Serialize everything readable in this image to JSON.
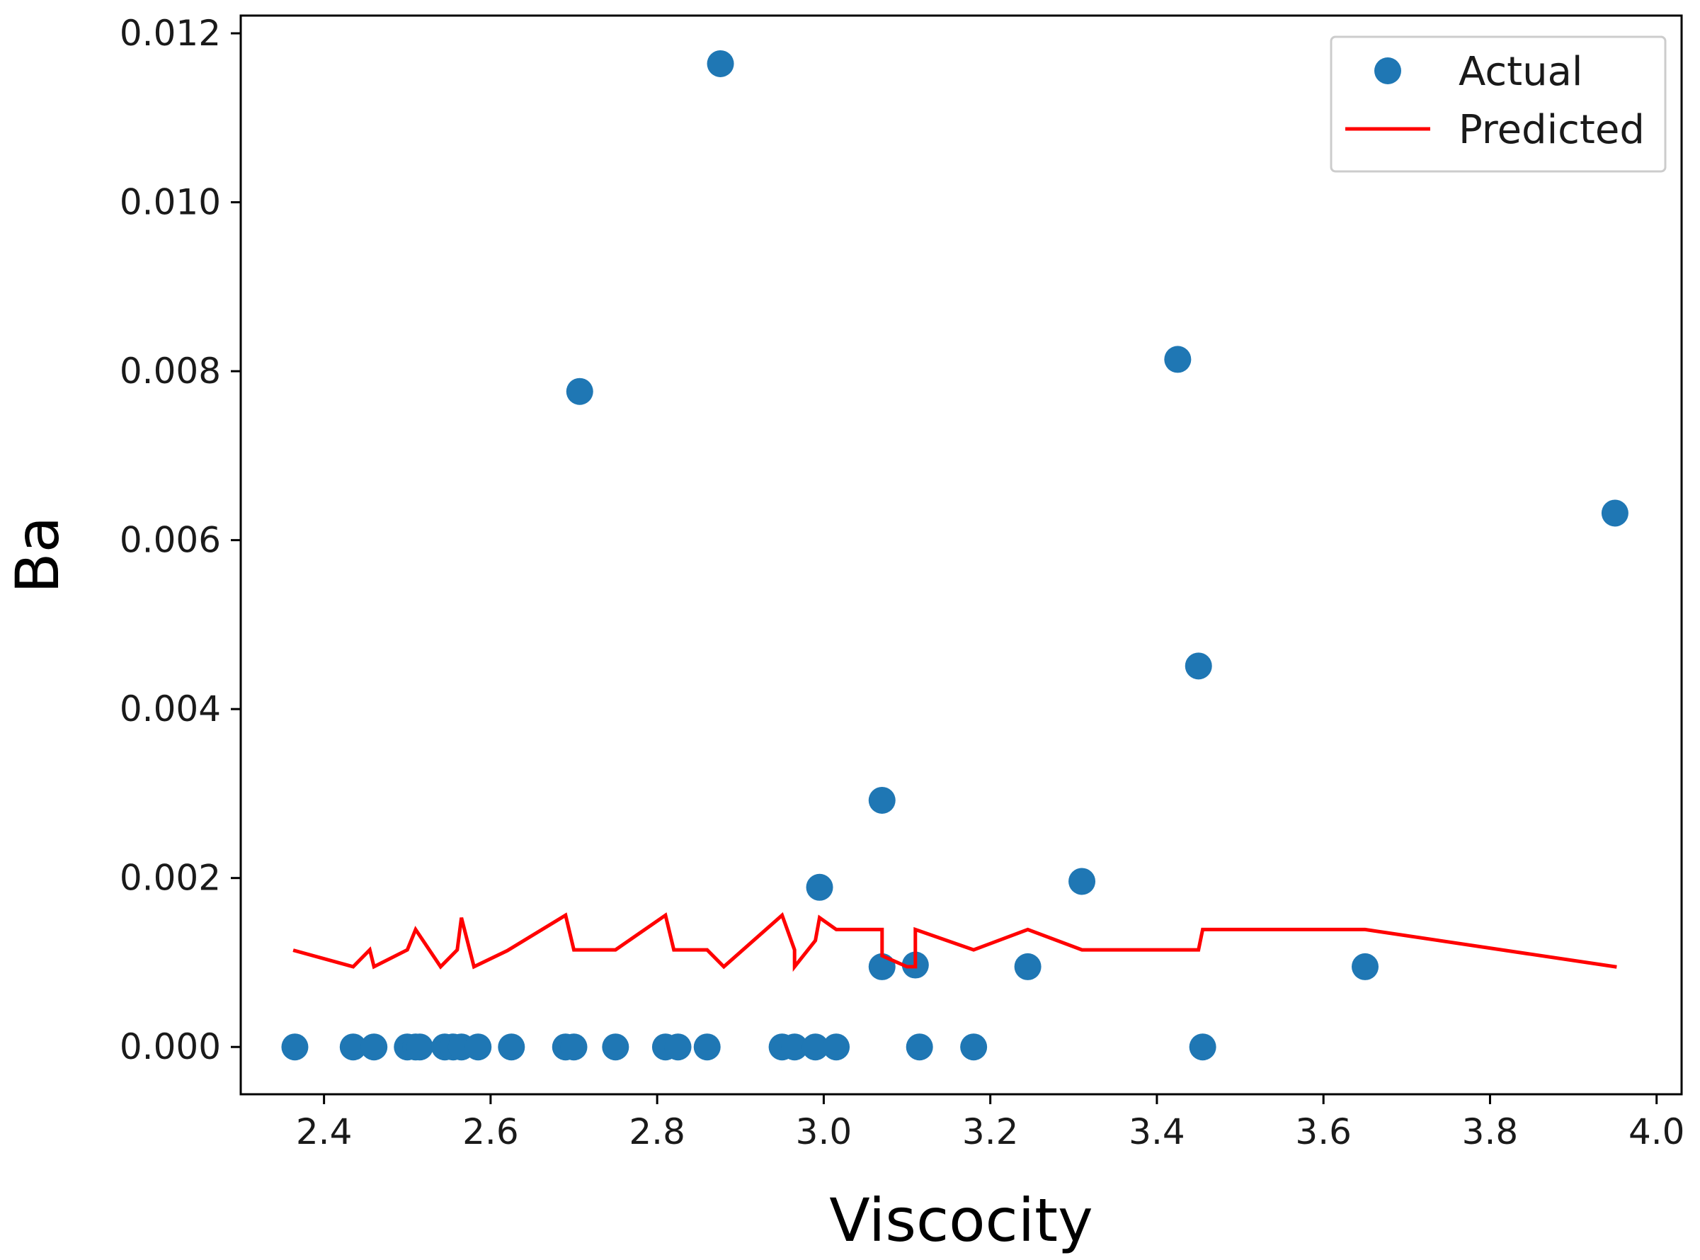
{
  "chart_data": {
    "type": "scatter",
    "title": "",
    "xlabel": "Viscocity",
    "ylabel": "Ba",
    "xlim": [
      2.3,
      4.03
    ],
    "ylim": [
      -0.00056,
      0.01221
    ],
    "xticks": [
      2.4,
      2.6,
      2.8,
      3.0,
      3.2,
      3.4,
      3.6,
      3.8,
      4.0
    ],
    "xtick_labels": [
      "2.4",
      "2.6",
      "2.8",
      "3.0",
      "3.2",
      "3.4",
      "3.6",
      "3.8",
      "4.0"
    ],
    "yticks": [
      0.0,
      0.002,
      0.004,
      0.006,
      0.008,
      0.01,
      0.012
    ],
    "ytick_labels": [
      "0.000",
      "0.002",
      "0.004",
      "0.006",
      "0.008",
      "0.010",
      "0.012"
    ],
    "grid": false,
    "legend_position": "top-right",
    "series": [
      {
        "name": "Actual",
        "kind": "scatter",
        "color": "#1f77b4",
        "points": [
          [
            2.365,
            0.0
          ],
          [
            2.435,
            0.0
          ],
          [
            2.46,
            0.0
          ],
          [
            2.5,
            0.0
          ],
          [
            2.51,
            0.0
          ],
          [
            2.515,
            0.0
          ],
          [
            2.545,
            0.0
          ],
          [
            2.555,
            0.0
          ],
          [
            2.565,
            0.0
          ],
          [
            2.585,
            0.0
          ],
          [
            2.625,
            0.0
          ],
          [
            2.69,
            0.0
          ],
          [
            2.7,
            0.0
          ],
          [
            2.75,
            0.0
          ],
          [
            2.81,
            0.0
          ],
          [
            2.825,
            0.0
          ],
          [
            2.86,
            0.0
          ],
          [
            2.95,
            0.0
          ],
          [
            2.965,
            0.0
          ],
          [
            2.99,
            0.0
          ],
          [
            3.015,
            0.0
          ],
          [
            3.115,
            0.0
          ],
          [
            3.18,
            0.0
          ],
          [
            3.455,
            0.0
          ],
          [
            2.707,
            0.00776
          ],
          [
            2.876,
            0.01164
          ],
          [
            2.995,
            0.00189
          ],
          [
            3.07,
            0.00292
          ],
          [
            3.07,
            0.00095
          ],
          [
            3.11,
            0.00097
          ],
          [
            3.245,
            0.00095
          ],
          [
            3.31,
            0.00196
          ],
          [
            3.425,
            0.00814
          ],
          [
            3.45,
            0.00451
          ],
          [
            3.65,
            0.00095
          ],
          [
            3.95,
            0.00632
          ]
        ]
      },
      {
        "name": "Predicted",
        "kind": "line",
        "color": "#ff0000",
        "x": [
          2.365,
          2.435,
          2.455,
          2.46,
          2.5,
          2.51,
          2.54,
          2.56,
          2.565,
          2.58,
          2.62,
          2.69,
          2.7,
          2.75,
          2.81,
          2.82,
          2.86,
          2.88,
          2.95,
          2.965,
          2.965,
          2.99,
          2.995,
          3.015,
          3.07,
          3.07,
          3.1,
          3.11,
          3.11,
          3.18,
          3.245,
          3.31,
          3.45,
          3.455,
          3.65,
          3.95
        ],
        "y": [
          0.00114,
          0.00095,
          0.00115,
          0.00095,
          0.00115,
          0.00139,
          0.00095,
          0.00115,
          0.00153,
          0.00095,
          0.00114,
          0.00156,
          0.00115,
          0.00115,
          0.00156,
          0.00115,
          0.00115,
          0.00095,
          0.00156,
          0.00115,
          0.00095,
          0.00126,
          0.00153,
          0.00139,
          0.00139,
          0.00108,
          0.00095,
          0.00095,
          0.00139,
          0.00115,
          0.00139,
          0.00115,
          0.00115,
          0.00139,
          0.00139,
          0.00095
        ]
      }
    ]
  }
}
